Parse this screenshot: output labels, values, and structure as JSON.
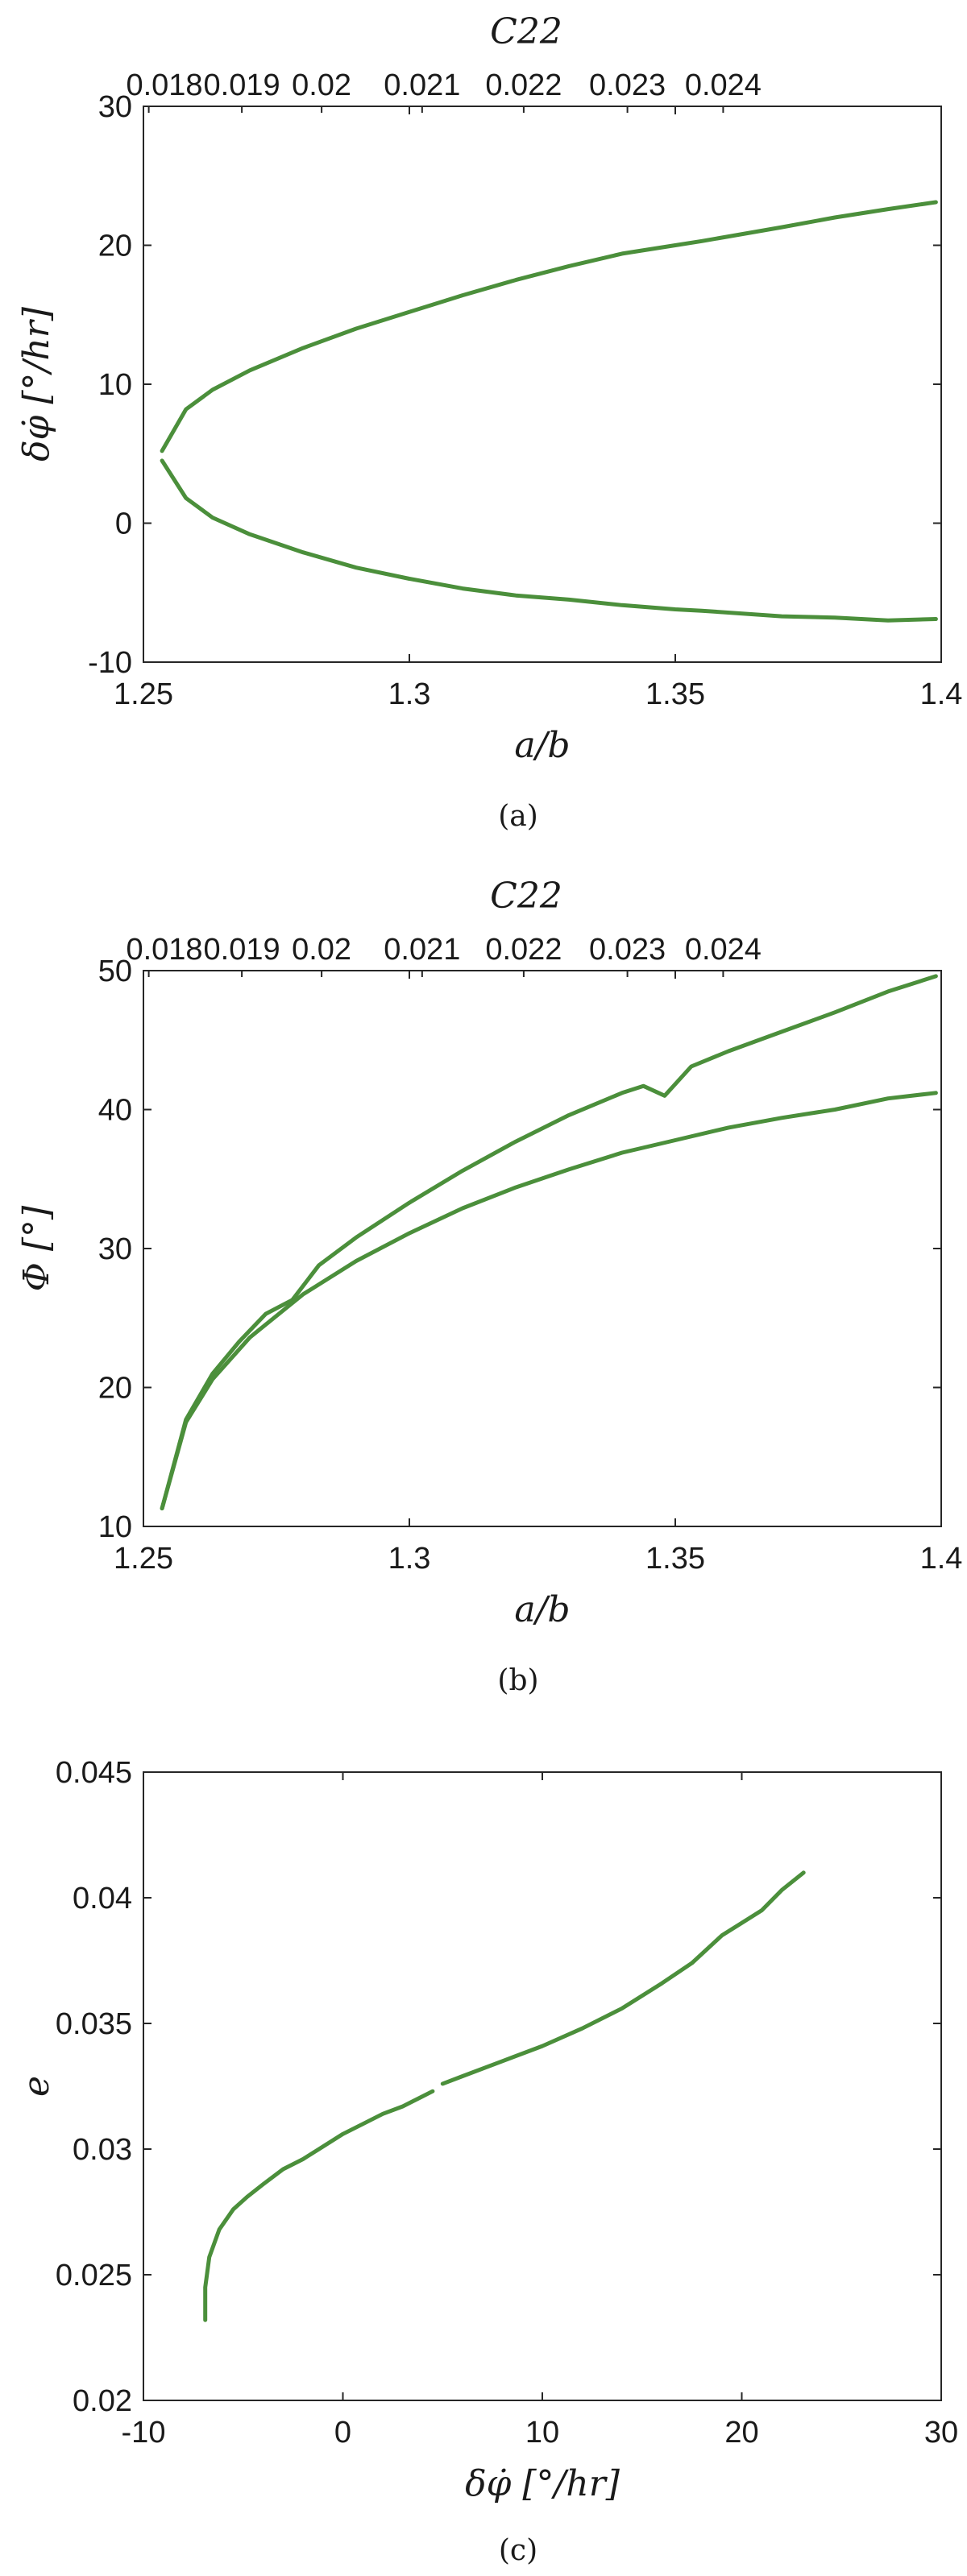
{
  "chart_data": [
    {
      "type": "line",
      "caption": "(a)",
      "xlabel": "a/b",
      "ylabel": "δφ̇ [°/hr]",
      "top_xlabel": "C22",
      "xlim": [
        1.25,
        1.4
      ],
      "ylim": [
        -10,
        30
      ],
      "xticks": [
        "1.25",
        "1.3",
        "1.35",
        "1.4"
      ],
      "yticks": [
        "-10",
        "0",
        "10",
        "20",
        "30"
      ],
      "top_xticks": [
        "0.018",
        "0.019",
        "0.02",
        "0.021",
        "0.022",
        "0.023",
        "0.024"
      ],
      "top_xtick_positions": [
        1.251,
        1.2685,
        1.2835,
        1.3024,
        1.3215,
        1.341,
        1.359
      ],
      "grid": false,
      "color": "#4b8f3b",
      "series": [
        {
          "x": [
            1.2535,
            1.258,
            1.263,
            1.27,
            1.28,
            1.29,
            1.3,
            1.31,
            1.32,
            1.33,
            1.34,
            1.35,
            1.355,
            1.37,
            1.38,
            1.39,
            1.399
          ],
          "y": [
            5.2,
            8.2,
            9.6,
            11.0,
            12.6,
            14.0,
            15.2,
            16.4,
            17.5,
            18.5,
            19.4,
            20.0,
            20.3,
            21.3,
            22.0,
            22.6,
            23.1
          ]
        },
        {
          "x": [
            1.2535,
            1.258,
            1.263,
            1.27,
            1.28,
            1.29,
            1.3,
            1.31,
            1.32,
            1.33,
            1.34,
            1.35,
            1.355,
            1.37,
            1.38,
            1.39,
            1.399
          ],
          "y": [
            4.5,
            1.8,
            0.4,
            -0.8,
            -2.1,
            -3.2,
            -4.0,
            -4.7,
            -5.2,
            -5.5,
            -5.9,
            -6.2,
            -6.3,
            -6.7,
            -6.8,
            -7.0,
            -6.9
          ]
        }
      ]
    },
    {
      "type": "line",
      "caption": "(b)",
      "xlabel": "a/b",
      "ylabel": "Φ [°]",
      "top_xlabel": "C22",
      "xlim": [
        1.25,
        1.4
      ],
      "ylim": [
        10,
        50
      ],
      "xticks": [
        "1.25",
        "1.3",
        "1.35",
        "1.4"
      ],
      "yticks": [
        "10",
        "20",
        "30",
        "40",
        "50"
      ],
      "top_xticks": [
        "0.018",
        "0.019",
        "0.02",
        "0.021",
        "0.022",
        "0.023",
        "0.024"
      ],
      "top_xtick_positions": [
        1.251,
        1.2685,
        1.2835,
        1.3024,
        1.3215,
        1.341,
        1.359
      ],
      "grid": false,
      "color": "#4b8f3b",
      "series": [
        {
          "x": [
            1.2535,
            1.258,
            1.263,
            1.268,
            1.273,
            1.278,
            1.283,
            1.29,
            1.3,
            1.31,
            1.32,
            1.33,
            1.34,
            1.344,
            1.348,
            1.353,
            1.36,
            1.37,
            1.38,
            1.39,
            1.399
          ],
          "y": [
            11.3,
            17.7,
            21.0,
            23.3,
            25.3,
            26.3,
            28.8,
            30.8,
            33.3,
            35.6,
            37.7,
            39.6,
            41.2,
            41.7,
            41.0,
            43.1,
            44.2,
            45.6,
            47.0,
            48.5,
            49.6
          ]
        },
        {
          "x": [
            1.2535,
            1.258,
            1.263,
            1.27,
            1.28,
            1.29,
            1.3,
            1.31,
            1.32,
            1.33,
            1.34,
            1.35,
            1.36,
            1.37,
            1.38,
            1.39,
            1.399
          ],
          "y": [
            11.3,
            17.5,
            20.6,
            23.6,
            26.7,
            29.1,
            31.1,
            32.9,
            34.4,
            35.7,
            36.9,
            37.8,
            38.7,
            39.4,
            40.0,
            40.8,
            41.2
          ]
        }
      ]
    },
    {
      "type": "line",
      "caption": "(c)",
      "xlabel": "δφ̇ [°/hr]",
      "ylabel": "e",
      "xlim": [
        -10,
        30
      ],
      "ylim": [
        0.02,
        0.045
      ],
      "xticks": [
        "-10",
        "0",
        "10",
        "20",
        "30"
      ],
      "yticks": [
        "0.02",
        "0.025",
        "0.03",
        "0.035",
        "0.04",
        "0.045"
      ],
      "grid": false,
      "color": "#4b8f3b",
      "series": [
        {
          "x": [
            -6.9,
            -6.9,
            -6.7,
            -6.2,
            -5.5,
            -4.8,
            -4.0,
            -3.0,
            -2.0,
            -1.0,
            0.0,
            1.0,
            2.0,
            3.0,
            4.0,
            4.5
          ],
          "y": [
            0.0232,
            0.0245,
            0.0257,
            0.0268,
            0.0276,
            0.0281,
            0.0286,
            0.0292,
            0.0296,
            0.0301,
            0.0306,
            0.031,
            0.0314,
            0.0317,
            0.0321,
            0.0323
          ]
        },
        {
          "x": [
            5.0,
            6.0,
            8.0,
            10.0,
            12.0,
            14.0,
            16.0,
            17.5,
            19.0,
            20.0,
            21.0,
            22.0,
            23.1
          ],
          "y": [
            0.0326,
            0.0329,
            0.0335,
            0.0341,
            0.0348,
            0.0356,
            0.0366,
            0.0374,
            0.0385,
            0.039,
            0.0395,
            0.0403,
            0.041
          ]
        }
      ]
    }
  ]
}
